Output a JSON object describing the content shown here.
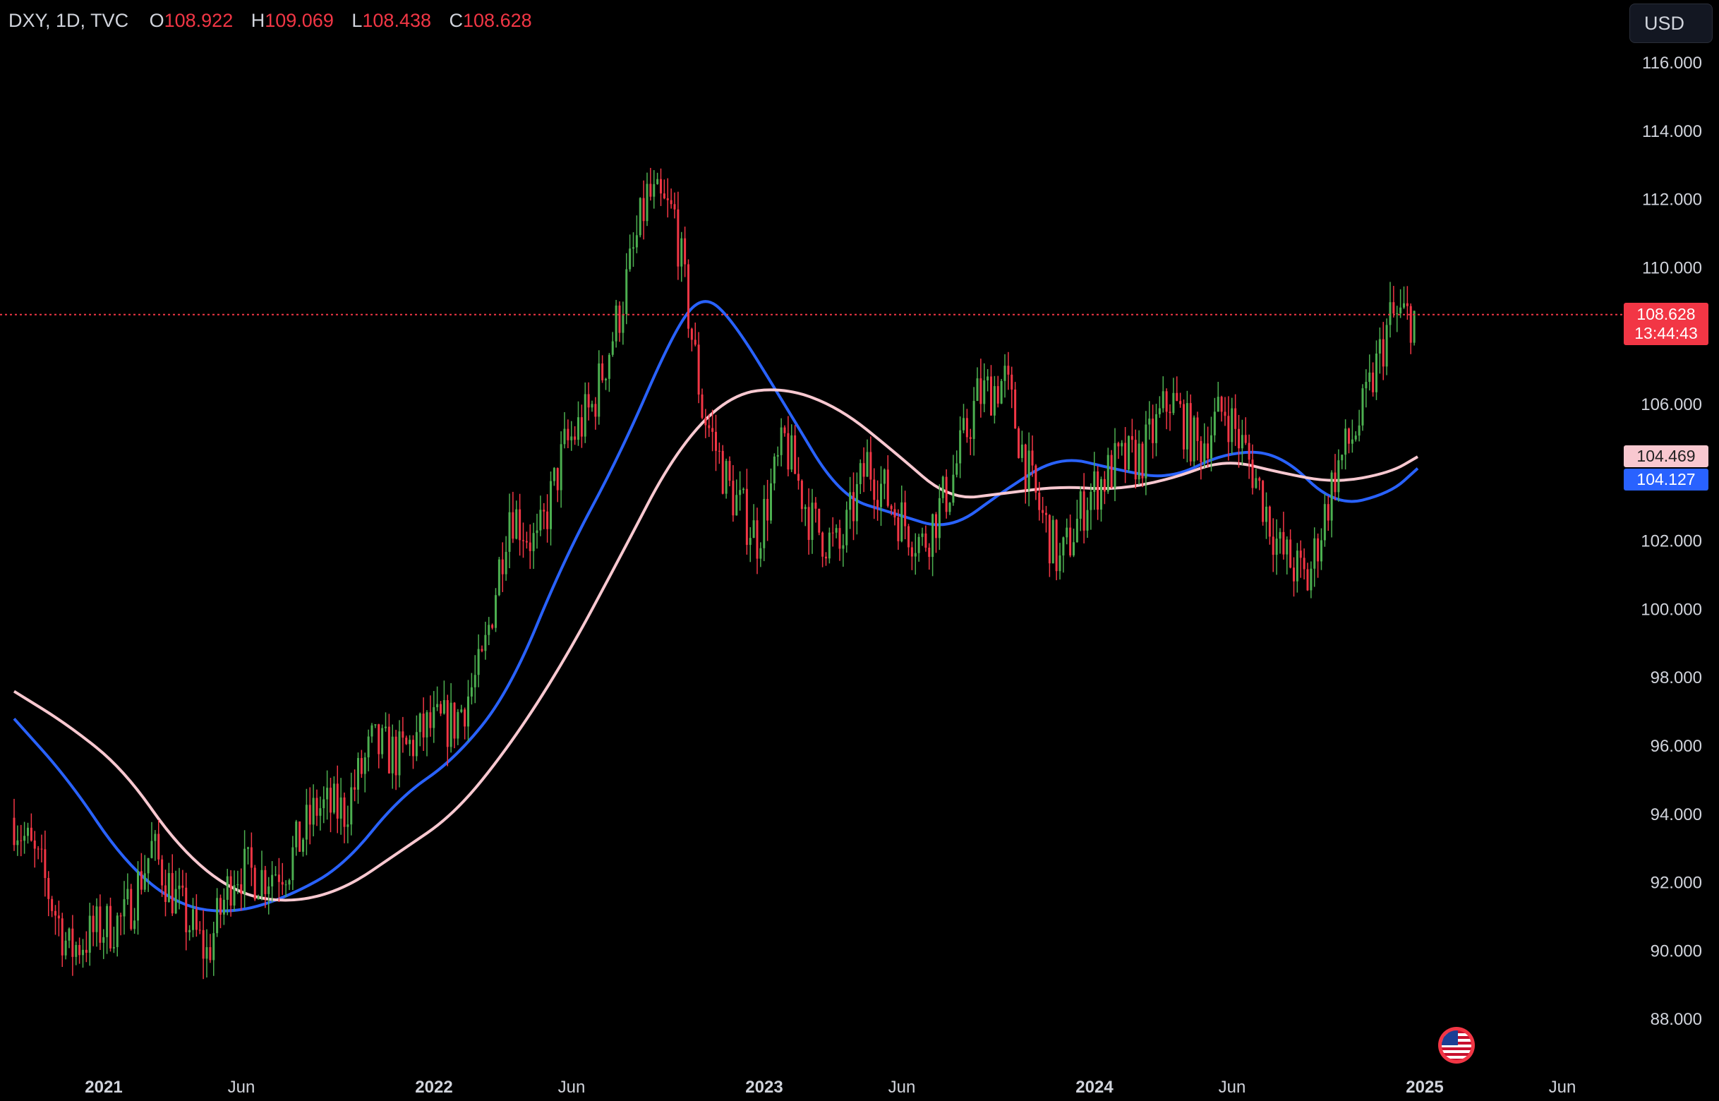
{
  "header": {
    "symbol": "DXY, 1D, TVC",
    "open_label": "O",
    "open_value": "108.922",
    "high_label": "H",
    "high_value": "109.069",
    "low_label": "L",
    "low_value": "108.438",
    "close_label": "C",
    "close_value": "108.628"
  },
  "currency_button": "USD",
  "price_tag": {
    "value": "108.628",
    "countdown": "13:44:43"
  },
  "ma_tags": {
    "pink": "104.469",
    "blue": "104.127"
  },
  "colors": {
    "up": "#4caf50",
    "down": "#f23645",
    "ma_fast": "#2962ff",
    "ma_slow": "#f8c8d0",
    "background": "#000000"
  },
  "chart_data": {
    "type": "candlestick",
    "title": "DXY, 1D, TVC",
    "xlabel": "",
    "ylabel": "",
    "x_ticks": [
      "2021",
      "Jun",
      "2022",
      "Jun",
      "2023",
      "Jun",
      "2024",
      "Jun",
      "2025",
      "Jun"
    ],
    "y_ticks": [
      "116.000",
      "114.000",
      "112.000",
      "110.000",
      "106.000",
      "102.000",
      "100.000",
      "98.000",
      "96.000",
      "94.000",
      "92.000",
      "90.000",
      "88.000"
    ],
    "x_range": [
      "2020-10",
      "2025-08"
    ],
    "ylim": [
      87.0,
      117.0
    ],
    "last_price": 108.628,
    "price_path_monthly": [
      {
        "date": "2020-10",
        "close": 93.9
      },
      {
        "date": "2020-11",
        "close": 92.3
      },
      {
        "date": "2020-12",
        "close": 90.0
      },
      {
        "date": "2021-01",
        "close": 90.6
      },
      {
        "date": "2021-02",
        "close": 90.9
      },
      {
        "date": "2021-03",
        "close": 93.0
      },
      {
        "date": "2021-04",
        "close": 91.3
      },
      {
        "date": "2021-05",
        "close": 89.9
      },
      {
        "date": "2021-06",
        "close": 92.4
      },
      {
        "date": "2021-07",
        "close": 92.2
      },
      {
        "date": "2021-08",
        "close": 92.6
      },
      {
        "date": "2021-09",
        "close": 94.2
      },
      {
        "date": "2021-10",
        "close": 94.1
      },
      {
        "date": "2021-11",
        "close": 96.0
      },
      {
        "date": "2021-12",
        "close": 95.7
      },
      {
        "date": "2022-01",
        "close": 96.5
      },
      {
        "date": "2022-02",
        "close": 96.7
      },
      {
        "date": "2022-03",
        "close": 98.3
      },
      {
        "date": "2022-04",
        "close": 103.0
      },
      {
        "date": "2022-05",
        "close": 101.8
      },
      {
        "date": "2022-06",
        "close": 104.7
      },
      {
        "date": "2022-07",
        "close": 105.9
      },
      {
        "date": "2022-08",
        "close": 108.7
      },
      {
        "date": "2022-09",
        "close": 112.1
      },
      {
        "date": "2022-10",
        "close": 111.5
      },
      {
        "date": "2022-11",
        "close": 105.9
      },
      {
        "date": "2022-12",
        "close": 103.5
      },
      {
        "date": "2023-01",
        "close": 102.1
      },
      {
        "date": "2023-02",
        "close": 104.9
      },
      {
        "date": "2023-03",
        "close": 102.5
      },
      {
        "date": "2023-04",
        "close": 101.7
      },
      {
        "date": "2023-05",
        "close": 104.3
      },
      {
        "date": "2023-06",
        "close": 102.9
      },
      {
        "date": "2023-07",
        "close": 101.9
      },
      {
        "date": "2023-08",
        "close": 103.6
      },
      {
        "date": "2023-09",
        "close": 106.2
      },
      {
        "date": "2023-10",
        "close": 106.7
      },
      {
        "date": "2023-11",
        "close": 103.5
      },
      {
        "date": "2023-12",
        "close": 101.3
      },
      {
        "date": "2024-01",
        "close": 103.3
      },
      {
        "date": "2024-02",
        "close": 104.2
      },
      {
        "date": "2024-03",
        "close": 104.5
      },
      {
        "date": "2024-04",
        "close": 106.2
      },
      {
        "date": "2024-05",
        "close": 104.7
      },
      {
        "date": "2024-06",
        "close": 105.9
      },
      {
        "date": "2024-07",
        "close": 104.1
      },
      {
        "date": "2024-08",
        "close": 101.7
      },
      {
        "date": "2024-09",
        "close": 100.8
      },
      {
        "date": "2024-10",
        "close": 104.0
      },
      {
        "date": "2024-11",
        "close": 105.7
      },
      {
        "date": "2024-12",
        "close": 108.5
      },
      {
        "date": "2025-01",
        "close": 108.6
      }
    ],
    "series": [
      {
        "name": "",
        "color": "#2962ff",
        "points": [
          {
            "date": "2020-10",
            "value": 96.8
          },
          {
            "date": "2020-12",
            "value": 95.0
          },
          {
            "date": "2021-02",
            "value": 92.6
          },
          {
            "date": "2021-04",
            "value": 91.3
          },
          {
            "date": "2021-06",
            "value": 91.1
          },
          {
            "date": "2021-08",
            "value": 91.6
          },
          {
            "date": "2021-10",
            "value": 92.5
          },
          {
            "date": "2021-12",
            "value": 94.5
          },
          {
            "date": "2022-02",
            "value": 95.6
          },
          {
            "date": "2022-04",
            "value": 97.6
          },
          {
            "date": "2022-06",
            "value": 101.5
          },
          {
            "date": "2022-08",
            "value": 104.5
          },
          {
            "date": "2022-10",
            "value": 108.2
          },
          {
            "date": "2022-11",
            "value": 109.2
          },
          {
            "date": "2022-12",
            "value": 108.6
          },
          {
            "date": "2023-02",
            "value": 106.0
          },
          {
            "date": "2023-04",
            "value": 103.3
          },
          {
            "date": "2023-06",
            "value": 102.8
          },
          {
            "date": "2023-08",
            "value": 102.3
          },
          {
            "date": "2023-10",
            "value": 103.5
          },
          {
            "date": "2023-12",
            "value": 104.5
          },
          {
            "date": "2024-02",
            "value": 104.1
          },
          {
            "date": "2024-04",
            "value": 103.8
          },
          {
            "date": "2024-06",
            "value": 104.6
          },
          {
            "date": "2024-08",
            "value": 104.6
          },
          {
            "date": "2024-10",
            "value": 103.0
          },
          {
            "date": "2024-12",
            "value": 103.4
          },
          {
            "date": "2025-01",
            "value": 104.127
          }
        ]
      },
      {
        "name": "",
        "color": "#f8c8d0",
        "points": [
          {
            "date": "2020-10",
            "value": 97.6
          },
          {
            "date": "2020-12",
            "value": 96.6
          },
          {
            "date": "2021-02",
            "value": 95.3
          },
          {
            "date": "2021-04",
            "value": 93.0
          },
          {
            "date": "2021-06",
            "value": 91.7
          },
          {
            "date": "2021-08",
            "value": 91.4
          },
          {
            "date": "2021-10",
            "value": 91.8
          },
          {
            "date": "2021-12",
            "value": 92.9
          },
          {
            "date": "2022-02",
            "value": 94.0
          },
          {
            "date": "2022-04",
            "value": 96.0
          },
          {
            "date": "2022-06",
            "value": 98.5
          },
          {
            "date": "2022-08",
            "value": 101.5
          },
          {
            "date": "2022-10",
            "value": 104.6
          },
          {
            "date": "2022-12",
            "value": 106.3
          },
          {
            "date": "2023-02",
            "value": 106.5
          },
          {
            "date": "2023-04",
            "value": 105.9
          },
          {
            "date": "2023-06",
            "value": 104.6
          },
          {
            "date": "2023-08",
            "value": 103.2
          },
          {
            "date": "2023-10",
            "value": 103.4
          },
          {
            "date": "2023-12",
            "value": 103.6
          },
          {
            "date": "2024-02",
            "value": 103.5
          },
          {
            "date": "2024-04",
            "value": 103.8
          },
          {
            "date": "2024-06",
            "value": 104.4
          },
          {
            "date": "2024-08",
            "value": 104.0
          },
          {
            "date": "2024-10",
            "value": 103.7
          },
          {
            "date": "2024-12",
            "value": 104.0
          },
          {
            "date": "2025-01",
            "value": 104.469
          }
        ]
      }
    ]
  }
}
